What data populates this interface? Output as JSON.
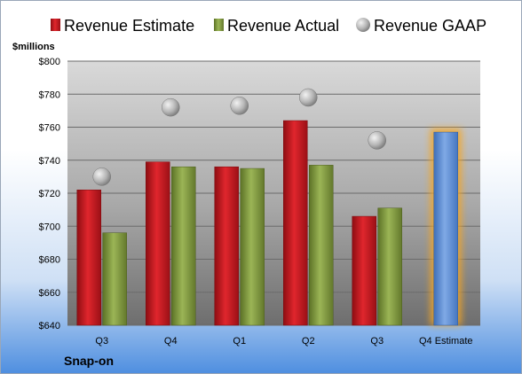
{
  "chart_data": {
    "type": "bar",
    "unit_label": "$millions",
    "categories": [
      "Q3",
      "Q4",
      "Q1",
      "Q2",
      "Q3",
      "Q4 Estimate"
    ],
    "series": [
      {
        "name": "Revenue Estimate",
        "kind": "bar",
        "color": "#c0151c",
        "values": [
          722,
          739,
          736,
          764,
          706,
          null
        ]
      },
      {
        "name": "Revenue Actual",
        "kind": "bar",
        "color": "#7f9a3c",
        "values": [
          696,
          736,
          735,
          737,
          711,
          null
        ]
      },
      {
        "name": "Revenue GAAP",
        "kind": "marker",
        "color": "#b0b0b0",
        "values": [
          730,
          772,
          773,
          778,
          752,
          null
        ]
      },
      {
        "name": "",
        "kind": "bar",
        "color": "#5b8fd6",
        "highlight": "#f5a623",
        "values": [
          null,
          null,
          null,
          null,
          null,
          757
        ]
      }
    ],
    "ylim": [
      640,
      800
    ],
    "yticks": [
      640,
      660,
      680,
      700,
      720,
      740,
      760,
      780,
      800
    ],
    "ytick_labels": [
      "$640",
      "$660",
      "$680",
      "$700",
      "$720",
      "$740",
      "$760",
      "$780",
      "$800"
    ],
    "grid": true,
    "legend_position": "top"
  },
  "company": "Snap-on"
}
